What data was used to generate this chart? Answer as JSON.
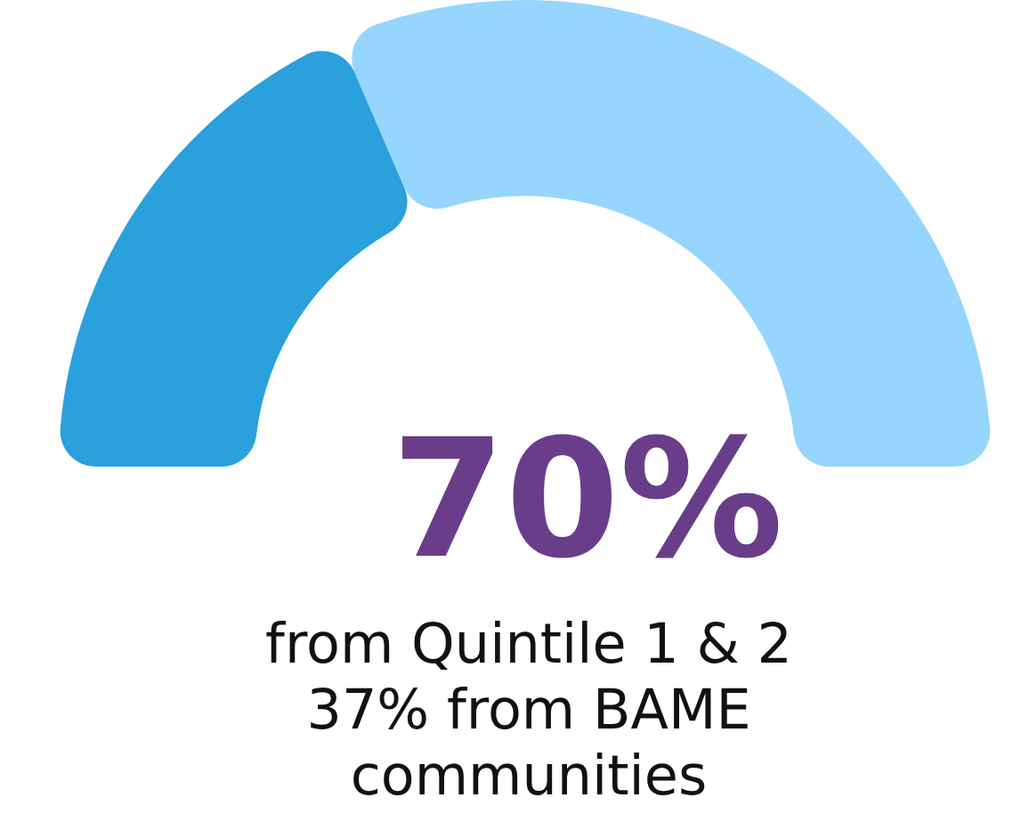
{
  "chart_data": {
    "type": "donut",
    "title": "70%",
    "categories": [
      null,
      null
    ],
    "values": [
      37,
      63
    ],
    "colors": [
      "#2aa0dc",
      "#96d5fd"
    ],
    "annotations": [
      "from Quintile 1 & 2",
      "37% from BAME",
      "communities"
    ]
  }
}
